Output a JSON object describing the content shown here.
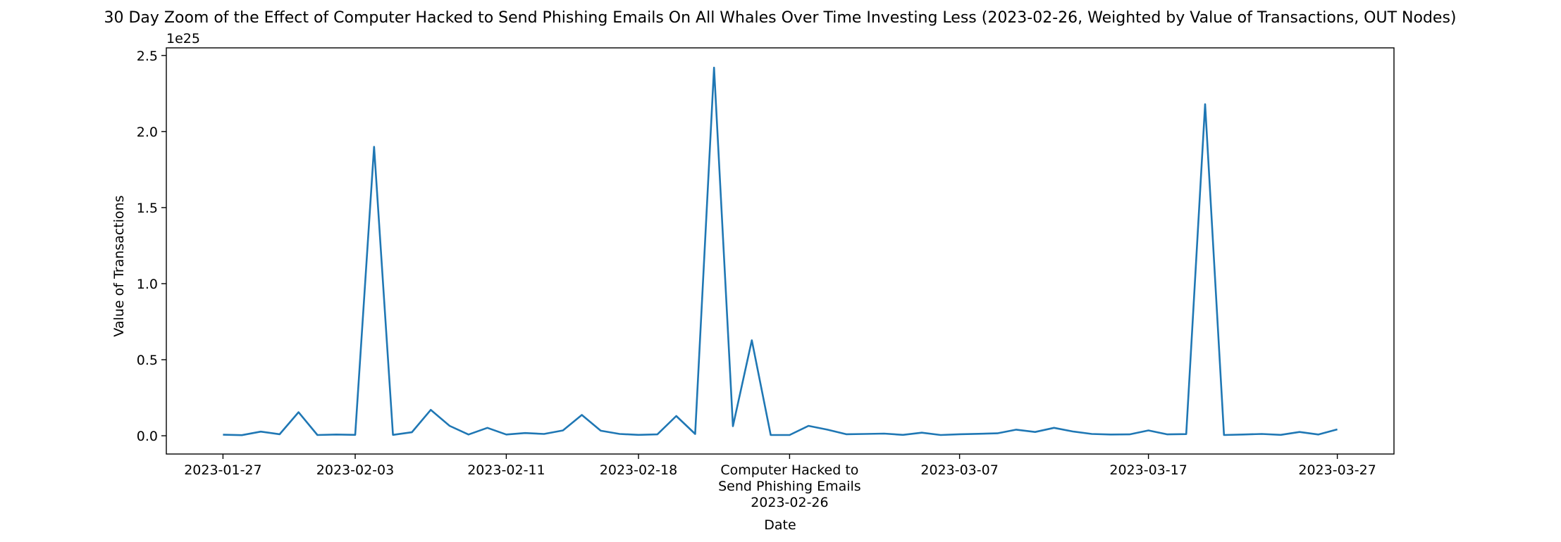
{
  "chart_data": {
    "type": "line",
    "title": "30 Day Zoom of the Effect of Computer Hacked to Send Phishing Emails On All Whales Over Time Investing Less (2023-02-26, Weighted by Value of Transactions, OUT Nodes)",
    "xlabel": "Date",
    "ylabel": "Value of Transactions",
    "y_offset_label": "1e25",
    "y_scale": 1e+25,
    "ylim": [
      -0.12,
      2.55
    ],
    "xlim": [
      "2023-01-24",
      "2023-03-30"
    ],
    "grid": false,
    "line_color": "#1f77b4",
    "x_ticks": [
      {
        "date": "2023-01-27",
        "label": "2023-01-27"
      },
      {
        "date": "2023-02-03",
        "label": "2023-02-03"
      },
      {
        "date": "2023-02-11",
        "label": "2023-02-11"
      },
      {
        "date": "2023-02-18",
        "label": "2023-02-18"
      },
      {
        "date": "2023-02-26",
        "label": "Computer Hacked to\nSend Phishing Emails\n2023-02-26"
      },
      {
        "date": "2023-03-07",
        "label": "2023-03-07"
      },
      {
        "date": "2023-03-17",
        "label": "2023-03-17"
      },
      {
        "date": "2023-03-27",
        "label": "2023-03-27"
      }
    ],
    "y_ticks": [
      {
        "value": 0.0,
        "label": "0.0"
      },
      {
        "value": 0.5,
        "label": "0.5"
      },
      {
        "value": 1.0,
        "label": "1.0"
      },
      {
        "value": 1.5,
        "label": "1.5"
      },
      {
        "value": 2.0,
        "label": "2.0"
      },
      {
        "value": 2.5,
        "label": "2.5"
      }
    ],
    "series": [
      {
        "x": [
          "2023-01-27",
          "2023-01-28",
          "2023-01-29",
          "2023-01-30",
          "2023-01-31",
          "2023-02-01",
          "2023-02-02",
          "2023-02-03",
          "2023-02-04",
          "2023-02-05",
          "2023-02-06",
          "2023-02-07",
          "2023-02-08",
          "2023-02-09",
          "2023-02-10",
          "2023-02-11",
          "2023-02-12",
          "2023-02-13",
          "2023-02-14",
          "2023-02-15",
          "2023-02-16",
          "2023-02-17",
          "2023-02-18",
          "2023-02-19",
          "2023-02-20",
          "2023-02-21",
          "2023-02-22",
          "2023-02-23",
          "2023-02-24",
          "2023-02-25",
          "2023-02-26",
          "2023-02-27",
          "2023-02-28",
          "2023-03-01",
          "2023-03-02",
          "2023-03-03",
          "2023-03-04",
          "2023-03-05",
          "2023-03-06",
          "2023-03-07",
          "2023-03-08",
          "2023-03-09",
          "2023-03-10",
          "2023-03-11",
          "2023-03-12",
          "2023-03-13",
          "2023-03-14",
          "2023-03-15",
          "2023-03-16",
          "2023-03-17",
          "2023-03-18",
          "2023-03-19",
          "2023-03-20",
          "2023-03-21",
          "2023-03-22",
          "2023-03-23",
          "2023-03-24",
          "2023-03-25",
          "2023-03-26",
          "2023-03-27"
        ],
        "y": [
          0.007,
          0.004,
          0.027,
          0.01,
          0.155,
          0.005,
          0.008,
          0.006,
          1.9,
          0.006,
          0.023,
          0.17,
          0.065,
          0.008,
          0.052,
          0.008,
          0.018,
          0.012,
          0.035,
          0.137,
          0.033,
          0.012,
          0.006,
          0.009,
          0.13,
          0.012,
          2.42,
          0.063,
          0.628,
          0.005,
          0.005,
          0.065,
          0.04,
          0.01,
          0.012,
          0.014,
          0.006,
          0.02,
          0.005,
          0.01,
          0.013,
          0.016,
          0.04,
          0.025,
          0.052,
          0.028,
          0.012,
          0.008,
          0.009,
          0.035,
          0.009,
          0.011,
          2.18,
          0.005,
          0.008,
          0.012,
          0.006,
          0.025,
          0.008,
          0.042
        ]
      }
    ]
  }
}
